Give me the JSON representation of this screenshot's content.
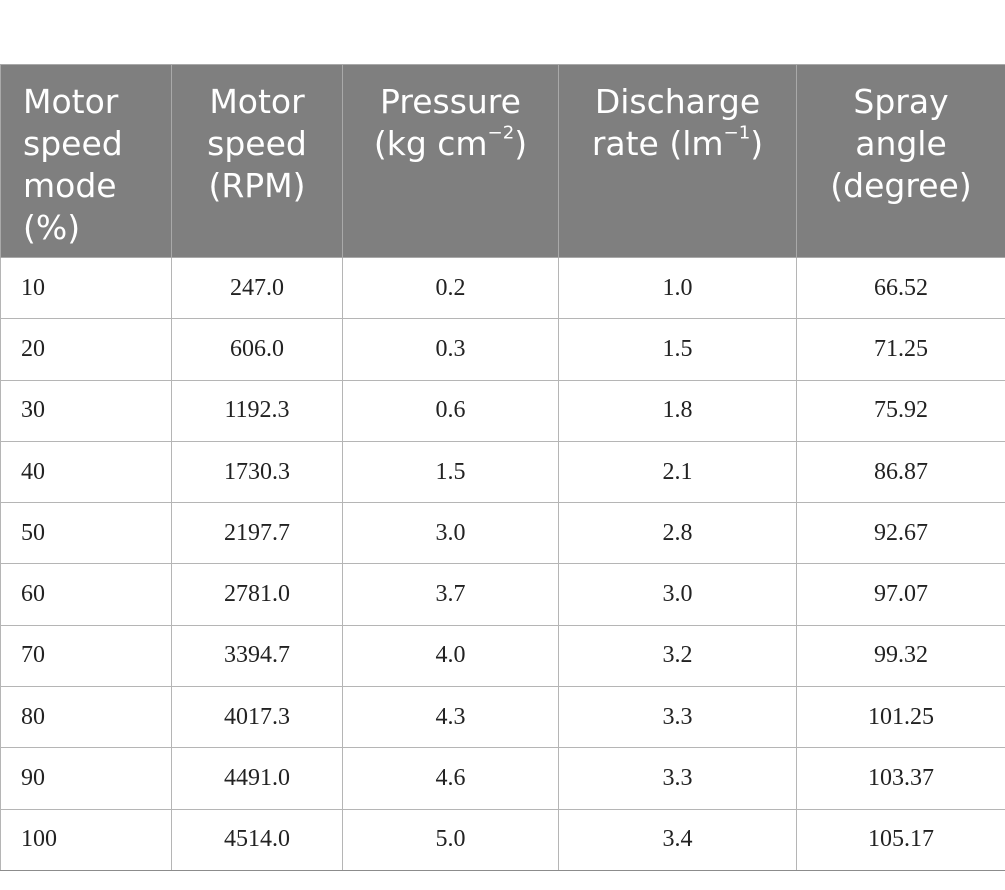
{
  "table": {
    "headers": [
      {
        "lines": [
          "Motor",
          "speed",
          "mode",
          "(%)"
        ],
        "sup": ""
      },
      {
        "lines": [
          "Motor",
          "speed",
          "(RPM)"
        ],
        "sup": ""
      },
      {
        "lines": [
          "Pressure",
          "(kg cm"
        ],
        "sup": "−2",
        "tail": ")"
      },
      {
        "lines": [
          "Discharge",
          "rate (lm"
        ],
        "sup": "−1",
        "tail": ")"
      },
      {
        "lines": [
          "Spray",
          "angle",
          "(degree)"
        ],
        "sup": ""
      }
    ],
    "rows": [
      [
        "10",
        "247.0",
        "0.2",
        "1.0",
        "66.52"
      ],
      [
        "20",
        "606.0",
        "0.3",
        "1.5",
        "71.25"
      ],
      [
        "30",
        "1192.3",
        "0.6",
        "1.8",
        "75.92"
      ],
      [
        "40",
        "1730.3",
        "1.5",
        "2.1",
        "86.87"
      ],
      [
        "50",
        "2197.7",
        "3.0",
        "2.8",
        "92.67"
      ],
      [
        "60",
        "2781.0",
        "3.7",
        "3.0",
        "97.07"
      ],
      [
        "70",
        "3394.7",
        "4.0",
        "3.2",
        "99.32"
      ],
      [
        "80",
        "4017.3",
        "4.3",
        "3.3",
        "101.25"
      ],
      [
        "90",
        "4491.0",
        "4.6",
        "3.3",
        "103.37"
      ],
      [
        "100",
        "4514.0",
        "5.0",
        "3.4",
        "105.17"
      ]
    ]
  },
  "colors": {
    "header_bg": "#7f7f7f",
    "header_text": "#ffffff",
    "border": "#b5b5b5"
  }
}
